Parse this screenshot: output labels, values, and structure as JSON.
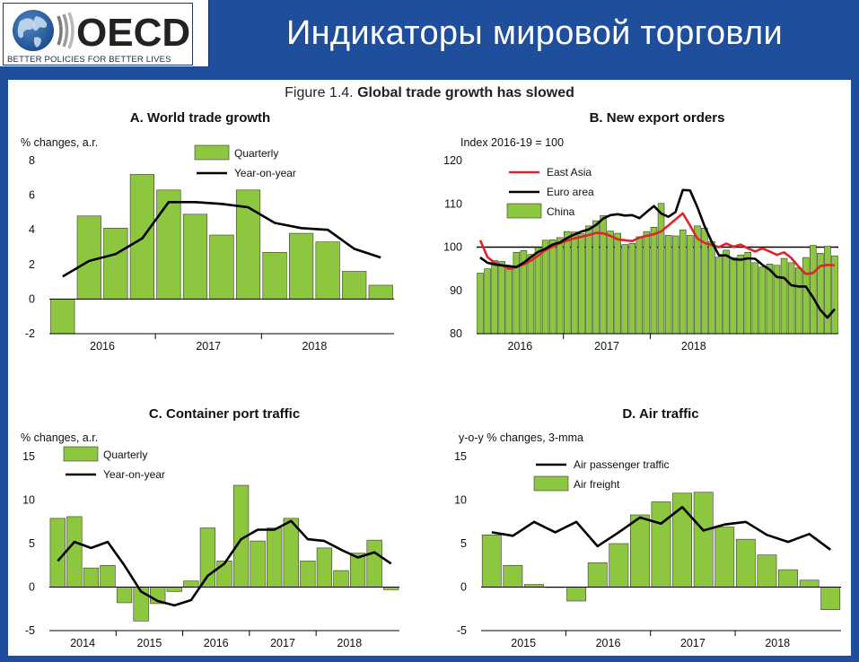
{
  "header": {
    "logo_text": "OECD",
    "logo_tagline": "BETTER POLICIES FOR BETTER LIVES",
    "title": "Индикаторы мировой торговли",
    "accent_color": "#1f4e9c"
  },
  "figure": {
    "prefix": "Figure 1.4. ",
    "title": "Global trade growth has slowed"
  },
  "chart_data": [
    {
      "type": "bar",
      "title": "A. World trade growth",
      "ylabel": "% changes, a.r.",
      "ylim": [
        -2,
        8
      ],
      "yticks": [
        -2,
        0,
        2,
        4,
        6,
        8
      ],
      "xtick_labels": [
        "2016",
        "2017",
        "2018"
      ],
      "categories": [
        "2015Q4",
        "2016Q1",
        "2016Q2",
        "2016Q3",
        "2016Q4",
        "2017Q1",
        "2017Q2",
        "2017Q3",
        "2017Q4",
        "2018Q1",
        "2018Q2",
        "2018Q3",
        "2018Q4"
      ],
      "legend_position": "top-center",
      "series": [
        {
          "name": "Quarterly",
          "kind": "bar",
          "color": "#8dc63f",
          "values": [
            -2.0,
            4.8,
            4.1,
            7.2,
            6.3,
            4.9,
            3.7,
            6.3,
            2.7,
            3.8,
            3.3,
            1.6,
            0.8
          ]
        },
        {
          "name": "Year-on-year",
          "kind": "line",
          "color": "#000000",
          "values": [
            1.3,
            2.2,
            2.6,
            3.5,
            5.6,
            5.6,
            5.5,
            5.3,
            4.4,
            4.1,
            4.0,
            2.9,
            2.4
          ]
        }
      ]
    },
    {
      "type": "bar",
      "title": "B. New export orders",
      "ylabel": "Index 2016-19 = 100",
      "ylim": [
        80,
        120
      ],
      "yticks": [
        80,
        90,
        100,
        110,
        120
      ],
      "xtick_labels": [
        "2016",
        "2017",
        "2018"
      ],
      "reference_line": 100,
      "legend_position": "top-left",
      "series": [
        {
          "name": "East Asia",
          "kind": "line",
          "color": "#e0242b",
          "values": [
            101.6,
            97.7,
            96.4,
            95.8,
            95.0,
            95.4,
            96.0,
            96.9,
            98.0,
            99.3,
            100.1,
            100.9,
            101.5,
            102.0,
            102.4,
            102.8,
            103.3,
            103.2,
            102.6,
            101.8,
            101.6,
            101.4,
            102.2,
            102.6,
            103.0,
            103.6,
            105.0,
            106.4,
            107.8,
            105.0,
            102.0,
            101.0,
            100.5,
            100.0,
            100.8,
            100.1,
            100.6,
            99.7,
            99.0,
            99.7,
            99.0,
            98.2,
            98.8,
            97.5,
            95.5,
            93.8,
            94.0,
            95.6,
            95.9,
            95.8
          ]
        },
        {
          "name": "Euro area",
          "kind": "line",
          "color": "#000000",
          "values": [
            97.6,
            96.4,
            96.0,
            95.8,
            95.6,
            95.4,
            96.4,
            97.7,
            98.9,
            99.6,
            100.6,
            101.1,
            102.1,
            102.9,
            103.6,
            104.1,
            105.1,
            106.6,
            107.4,
            107.6,
            107.3,
            107.4,
            106.7,
            108.1,
            109.5,
            107.8,
            107.0,
            108.1,
            113.2,
            113.1,
            109.3,
            104.9,
            101.2,
            98.1,
            98.1,
            97.2,
            97.1,
            97.4,
            97.3,
            95.9,
            94.8,
            93.1,
            92.9,
            91.2,
            90.9,
            90.9,
            88.4,
            85.5,
            83.7,
            85.7
          ]
        },
        {
          "name": "China",
          "kind": "bar",
          "color": "#8dc63f",
          "values": [
            94.0,
            95.0,
            96.9,
            96.7,
            94.9,
            98.8,
            99.2,
            98.3,
            99.9,
            101.6,
            101.7,
            102.2,
            103.6,
            103.5,
            103.1,
            104.9,
            106.1,
            107.3,
            103.7,
            103.2,
            100.6,
            100.9,
            102.4,
            103.6,
            104.6,
            110.1,
            102.7,
            102.6,
            104.0,
            102.7,
            104.9,
            104.4,
            101.3,
            97.7,
            99.3,
            97.6,
            98.2,
            98.8,
            96.4,
            95.4,
            96.1,
            95.8,
            97.4,
            96.4,
            95.2,
            97.6,
            100.4,
            98.6,
            100.2,
            98.0
          ]
        }
      ]
    },
    {
      "type": "bar",
      "title": "C. Container port traffic",
      "ylabel": "% changes, a.r.",
      "ylim": [
        -5,
        15
      ],
      "yticks": [
        -5,
        0,
        5,
        10,
        15
      ],
      "xtick_labels": [
        "2014",
        "2015",
        "2016",
        "2017",
        "2018"
      ],
      "legend_position": "top-left",
      "series": [
        {
          "name": "Quarterly",
          "kind": "bar",
          "color": "#8dc63f",
          "values": [
            7.9,
            8.1,
            2.2,
            2.5,
            -1.8,
            -3.9,
            -1.9,
            -0.5,
            0.7,
            6.8,
            3.0,
            11.7,
            5.3,
            6.8,
            7.9,
            3.0,
            4.5,
            1.9,
            3.9,
            5.4,
            -0.3
          ]
        },
        {
          "name": "Year-on-year",
          "kind": "line",
          "color": "#000000",
          "values": [
            3.0,
            5.2,
            4.5,
            5.2,
            2.5,
            -0.5,
            -1.6,
            -2.1,
            -1.5,
            1.3,
            2.7,
            5.5,
            6.6,
            6.6,
            7.6,
            5.5,
            5.3,
            4.3,
            3.4,
            4.0,
            2.7
          ]
        }
      ]
    },
    {
      "type": "bar",
      "title": "D. Air traffic",
      "ylabel": "y-o-y % changes, 3-mma",
      "ylim": [
        -5,
        15
      ],
      "yticks": [
        -5,
        0,
        5,
        10,
        15
      ],
      "xtick_labels": [
        "2015",
        "2016",
        "2017",
        "2018"
      ],
      "legend_position": "top-center",
      "series": [
        {
          "name": "Air passenger traffic",
          "kind": "line",
          "color": "#000000",
          "values": [
            6.3,
            5.9,
            7.5,
            6.3,
            7.5,
            4.7,
            6.3,
            8.0,
            7.3,
            9.2,
            6.5,
            7.2,
            7.5,
            6.0,
            5.2,
            6.1,
            4.3
          ]
        },
        {
          "name": "Air freight",
          "kind": "bar",
          "color": "#8dc63f",
          "values": [
            6.0,
            2.5,
            0.3,
            0.0,
            -1.6,
            2.8,
            5.0,
            8.3,
            9.8,
            10.8,
            10.9,
            6.9,
            5.5,
            3.7,
            2.0,
            0.8,
            -2.6
          ]
        }
      ]
    }
  ]
}
